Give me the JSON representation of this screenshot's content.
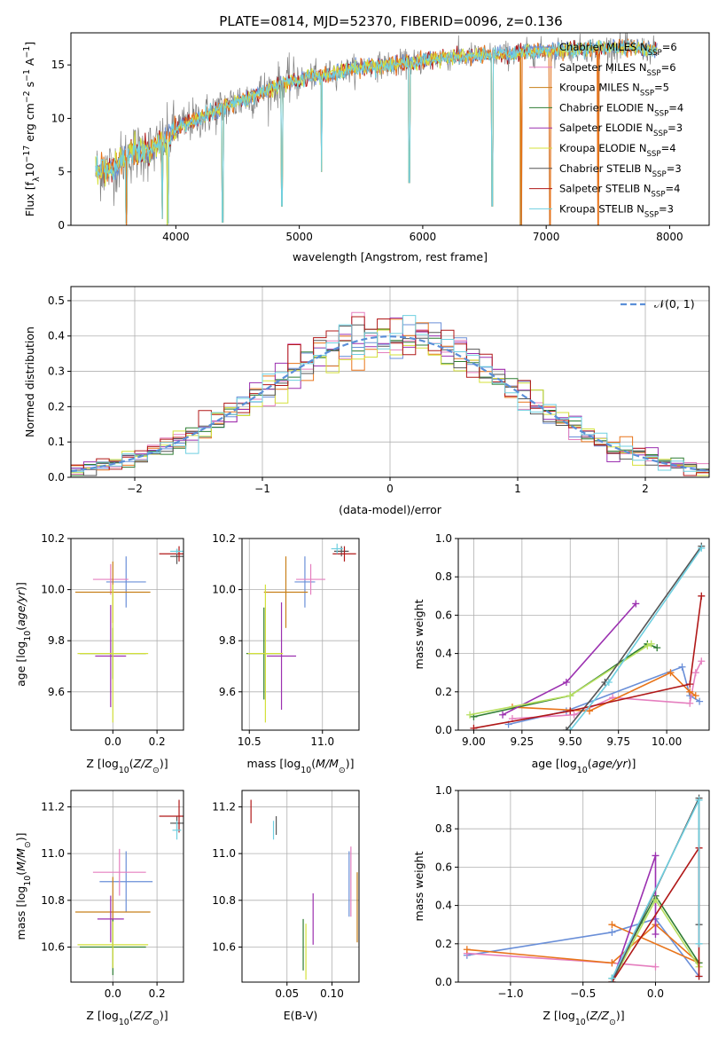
{
  "title": "PLATE=0814, MJD=52370, FIBERID=0096, z=0.136",
  "colors": {
    "Chabrier MILES": "#6a8fd8",
    "Salpeter MILES": "#e57fbf",
    "Kroupa MILES": "#c8801a",
    "Chabrier ELODIE": "#2e7d32",
    "Salpeter ELODIE": "#9b30b0",
    "Kroupa ELODIE": "#d4e03a",
    "Chabrier STELIB": "#555555",
    "Salpeter STELIB": "#b01818",
    "Kroupa STELIB": "#6ecfe0",
    "data": "#808080",
    "normal": "#5b8fd8",
    "orange": "#e8741a",
    "lightgreen": "#b8e060"
  },
  "chart_data": [
    {
      "type": "line",
      "name": "spectrum",
      "xlabel": "wavelength [Angstrom, rest frame]",
      "ylabel": "Flux [f_λ10^-17 erg cm^-2 s^-1 A^-1]",
      "xlim": [
        3150,
        8320
      ],
      "ylim": [
        0,
        18
      ],
      "xticks": [
        4000,
        5000,
        6000,
        7000,
        8000
      ],
      "yticks": [
        0,
        5,
        10,
        15
      ],
      "legend": {
        "placement": "top-right",
        "entries": [
          {
            "base": "Chabrier MILES",
            "sub": "SSP",
            "n": "=6"
          },
          {
            "base": "Salpeter MILES",
            "sub": "SSP",
            "n": "=6"
          },
          {
            "base": "Kroupa MILES",
            "sub": "SSP",
            "n": "=5"
          },
          {
            "base": "Chabrier ELODIE",
            "sub": "SSP",
            "n": "=4"
          },
          {
            "base": "Salpeter ELODIE",
            "sub": "SSP",
            "n": "=3"
          },
          {
            "base": "Kroupa ELODIE",
            "sub": "SSP",
            "n": "=4"
          },
          {
            "base": "Chabrier STELIB",
            "sub": "SSP",
            "n": "=3"
          },
          {
            "base": "Salpeter STELIB",
            "sub": "SSP",
            "n": "=4"
          },
          {
            "base": "Kroupa STELIB",
            "sub": "SSP",
            "n": "=3"
          }
        ]
      },
      "continuum": [
        [
          3350,
          5.0
        ],
        [
          3500,
          5.5
        ],
        [
          3650,
          6.8
        ],
        [
          3800,
          7.0
        ],
        [
          3900,
          7.6
        ],
        [
          4000,
          9.0
        ],
        [
          4100,
          9.6
        ],
        [
          4300,
          10.6
        ],
        [
          4500,
          11.6
        ],
        [
          4700,
          12.5
        ],
        [
          4900,
          13.4
        ],
        [
          5100,
          13.9
        ],
        [
          5300,
          14.3
        ],
        [
          5500,
          14.8
        ],
        [
          5700,
          15.0
        ],
        [
          5900,
          15.2
        ],
        [
          6100,
          15.6
        ],
        [
          6300,
          15.8
        ],
        [
          6500,
          15.9
        ],
        [
          6700,
          16.0
        ],
        [
          6900,
          16.2
        ],
        [
          7100,
          16.4
        ],
        [
          7300,
          16.5
        ],
        [
          7500,
          16.6
        ],
        [
          7700,
          16.6
        ],
        [
          7900,
          16.3
        ]
      ],
      "dips": [
        [
          3600,
          0.2
        ],
        [
          3890,
          0.6
        ],
        [
          3935,
          0.2
        ],
        [
          4380,
          0.3
        ],
        [
          4860,
          1.8
        ],
        [
          5180,
          5.0
        ],
        [
          5890,
          4.0
        ],
        [
          6563,
          1.8
        ],
        [
          6800,
          0
        ],
        [
          7030,
          0
        ],
        [
          7420,
          0
        ]
      ]
    },
    {
      "type": "line",
      "name": "residual-histogram",
      "xlabel": "(data-model)/error",
      "ylabel": "Normed distribution",
      "xlim": [
        -2.5,
        2.5
      ],
      "ylim": [
        0,
        0.54
      ],
      "xticks": [
        -2,
        -1,
        0,
        1,
        2
      ],
      "yticks": [
        0,
        0.1,
        0.2,
        0.3,
        0.4,
        0.5
      ],
      "legend": {
        "placement": "top-right",
        "label": "𝒩(0, 1)"
      },
      "bin_width": 0.1
    },
    {
      "type": "scatter",
      "name": "age-vs-Z",
      "xlabel": "Z [log10(Z/Z⊙)]",
      "ylabel": "age [log10(age/yr)]",
      "xlim": [
        -0.19,
        0.32
      ],
      "ylim": [
        9.45,
        10.2
      ],
      "xticks": [
        0.0,
        0.2
      ],
      "yticks": [
        9.6,
        9.8,
        10.0,
        10.2
      ],
      "points": [
        {
          "c": "Chabrier MILES",
          "x": 0.06,
          "y": 10.03,
          "ex": 0.09,
          "ey": 0.1
        },
        {
          "c": "Salpeter MILES",
          "x": -0.01,
          "y": 10.04,
          "ex": 0.08,
          "ey": 0.06
        },
        {
          "c": "Kroupa MILES",
          "x": 0.0,
          "y": 9.99,
          "ex": 0.17,
          "ey": 0.12
        },
        {
          "c": "Chabrier ELODIE",
          "x": 0.0,
          "y": 9.75,
          "ex": 0.15,
          "ey": 0.1
        },
        {
          "c": "Salpeter ELODIE",
          "x": -0.01,
          "y": 9.74,
          "ex": 0.07,
          "ey": 0.2
        },
        {
          "c": "Kroupa ELODIE",
          "x": 0.0,
          "y": 9.75,
          "ex": 0.16,
          "ey": 0.27
        },
        {
          "c": "Chabrier STELIB",
          "x": 0.29,
          "y": 10.13,
          "ex": 0.03,
          "ey": 0.03
        },
        {
          "c": "Salpeter STELIB",
          "x": 0.3,
          "y": 10.14,
          "ex": 0.09,
          "ey": 0.03
        },
        {
          "c": "Kroupa STELIB",
          "x": 0.29,
          "y": 10.15,
          "ex": 0.03,
          "ey": 0.01
        }
      ]
    },
    {
      "type": "scatter",
      "name": "age-vs-mass",
      "xlabel": "mass [log10(M/M⊙)]",
      "ylabel": "",
      "xlim": [
        10.45,
        11.25
      ],
      "ylim": [
        9.45,
        10.2
      ],
      "xticks": [
        10.5,
        11.0
      ],
      "yticks": [
        9.6,
        9.8,
        10.0,
        10.2
      ],
      "points": [
        {
          "c": "Chabrier MILES",
          "x": 10.88,
          "y": 10.03,
          "ex": 0.07,
          "ey": 0.1
        },
        {
          "c": "Salpeter MILES",
          "x": 10.92,
          "y": 10.04,
          "ex": 0.1,
          "ey": 0.06
        },
        {
          "c": "Kroupa MILES",
          "x": 10.75,
          "y": 9.99,
          "ex": 0.15,
          "ey": 0.14
        },
        {
          "c": "Chabrier ELODIE",
          "x": 10.6,
          "y": 9.75,
          "ex": 0.12,
          "ey": 0.18
        },
        {
          "c": "Salpeter ELODIE",
          "x": 10.72,
          "y": 9.74,
          "ex": 0.1,
          "ey": 0.21
        },
        {
          "c": "Kroupa ELODIE",
          "x": 10.61,
          "y": 9.75,
          "ex": 0.12,
          "ey": 0.27
        },
        {
          "c": "Chabrier STELIB",
          "x": 11.13,
          "y": 10.15,
          "ex": 0.05,
          "ey": 0.02
        },
        {
          "c": "Salpeter STELIB",
          "x": 11.15,
          "y": 10.14,
          "ex": 0.08,
          "ey": 0.03
        },
        {
          "c": "Kroupa STELIB",
          "x": 11.1,
          "y": 10.16,
          "ex": 0.04,
          "ey": 0.02
        }
      ]
    },
    {
      "type": "line",
      "name": "mass-weight-vs-age",
      "xlabel": "age [log10(age/yr)]",
      "ylabel": "mass weight",
      "xlim": [
        8.92,
        10.22
      ],
      "ylim": [
        0,
        1.0
      ],
      "xticks": [
        9.0,
        9.25,
        9.5,
        9.75,
        10.0
      ],
      "yticks": [
        0,
        0.2,
        0.4,
        0.6,
        0.8,
        1.0
      ],
      "series": [
        {
          "c": "Chabrier MILES",
          "x": [
            9.18,
            9.48,
            10.08,
            10.12,
            10.17
          ],
          "y": [
            0.03,
            0.1,
            0.33,
            0.18,
            0.15
          ]
        },
        {
          "c": "Salpeter MILES",
          "x": [
            9.2,
            9.52,
            9.72,
            10.12,
            10.15,
            10.18
          ],
          "y": [
            0.06,
            0.08,
            0.17,
            0.14,
            0.3,
            0.36
          ]
        },
        {
          "c": "orange",
          "x": [
            9.2,
            9.6,
            10.02,
            10.12,
            10.15
          ],
          "y": [
            0.12,
            0.1,
            0.3,
            0.2,
            0.18
          ]
        },
        {
          "c": "Chabrier ELODIE",
          "x": [
            9.0,
            9.5,
            9.9,
            9.95
          ],
          "y": [
            0.07,
            0.18,
            0.45,
            0.43
          ]
        },
        {
          "c": "Salpeter ELODIE",
          "x": [
            9.15,
            9.48,
            9.84
          ],
          "y": [
            0.08,
            0.25,
            0.66
          ]
        },
        {
          "c": "lightgreen",
          "x": [
            8.98,
            9.5,
            9.9,
            9.92
          ],
          "y": [
            0.08,
            0.18,
            0.44,
            0.45
          ]
        },
        {
          "c": "Chabrier STELIB",
          "x": [
            9.48,
            9.68,
            10.18
          ],
          "y": [
            0.0,
            0.25,
            0.96
          ]
        },
        {
          "c": "Salpeter STELIB",
          "x": [
            9.0,
            9.5,
            10.12,
            10.18
          ],
          "y": [
            0.01,
            0.1,
            0.24,
            0.7
          ]
        },
        {
          "c": "Kroupa STELIB",
          "x": [
            9.5,
            9.7,
            10.18
          ],
          "y": [
            0.0,
            0.25,
            0.95
          ]
        }
      ]
    },
    {
      "type": "scatter",
      "name": "mass-vs-Z",
      "xlabel": "Z [log10(Z/Z⊙)]",
      "ylabel": "mass [log10(M/M⊙)]",
      "xlim": [
        -0.19,
        0.32
      ],
      "ylim": [
        10.45,
        11.27
      ],
      "xticks": [
        0.0,
        0.2
      ],
      "yticks": [
        10.6,
        10.8,
        11.0,
        11.2
      ],
      "points": [
        {
          "c": "Chabrier MILES",
          "x": 0.06,
          "y": 10.88,
          "ex": 0.12,
          "ey": 0.13
        },
        {
          "c": "Salpeter MILES",
          "x": 0.03,
          "y": 10.92,
          "ex": 0.12,
          "ey": 0.1
        },
        {
          "c": "Kroupa MILES",
          "x": 0.0,
          "y": 10.75,
          "ex": 0.17,
          "ey": 0.15
        },
        {
          "c": "Chabrier ELODIE",
          "x": 0.0,
          "y": 10.6,
          "ex": 0.15,
          "ey": 0.12
        },
        {
          "c": "Salpeter ELODIE",
          "x": -0.01,
          "y": 10.72,
          "ex": 0.06,
          "ey": 0.1
        },
        {
          "c": "Kroupa ELODIE",
          "x": 0.0,
          "y": 10.61,
          "ex": 0.16,
          "ey": 0.1
        },
        {
          "c": "Chabrier STELIB",
          "x": 0.29,
          "y": 11.13,
          "ex": 0.03,
          "ey": 0.03
        },
        {
          "c": "Salpeter STELIB",
          "x": 0.3,
          "y": 11.16,
          "ex": 0.09,
          "ey": 0.07
        },
        {
          "c": "Kroupa STELIB",
          "x": 0.29,
          "y": 11.1,
          "ex": 0.02,
          "ey": 0.04
        }
      ]
    },
    {
      "type": "scatter",
      "name": "mass-vs-EBV",
      "xlabel": "E(B-V)",
      "ylabel": "",
      "xlim": [
        0.0,
        0.13
      ],
      "ylim": [
        10.45,
        11.27
      ],
      "xticks": [
        0.05,
        0.1
      ],
      "yticks": [
        10.6,
        10.8,
        11.0,
        11.2
      ],
      "points": [
        {
          "c": "Chabrier MILES",
          "x": 0.119,
          "y": 10.87,
          "ey": 0.14
        },
        {
          "c": "Salpeter MILES",
          "x": 0.121,
          "y": 10.88,
          "ey": 0.15
        },
        {
          "c": "Kroupa MILES",
          "x": 0.128,
          "y": 10.77,
          "ey": 0.15
        },
        {
          "c": "Chabrier ELODIE",
          "x": 0.068,
          "y": 10.61,
          "ey": 0.11
        },
        {
          "c": "Salpeter ELODIE",
          "x": 0.079,
          "y": 10.72,
          "ey": 0.11
        },
        {
          "c": "Kroupa ELODIE",
          "x": 0.071,
          "y": 10.58,
          "ey": 0.12
        },
        {
          "c": "Chabrier STELIB",
          "x": 0.038,
          "y": 11.12,
          "ey": 0.04
        },
        {
          "c": "Salpeter STELIB",
          "x": 0.01,
          "y": 11.18,
          "ey": 0.05
        },
        {
          "c": "Kroupa STELIB",
          "x": 0.035,
          "y": 11.1,
          "ey": 0.04
        }
      ]
    },
    {
      "type": "line",
      "name": "mass-weight-vs-Z",
      "xlabel": "Z [log10(Z/Z⊙)]",
      "ylabel": "mass weight",
      "xlim": [
        -1.36,
        0.37
      ],
      "ylim": [
        0,
        1.0
      ],
      "xticks": [
        -1.0,
        -0.5,
        0.0
      ],
      "yticks": [
        0,
        0.2,
        0.4,
        0.6,
        0.8,
        1.0
      ],
      "series": [
        {
          "c": "Chabrier MILES",
          "x": [
            -1.3,
            -0.3,
            0.0,
            0.3
          ],
          "y": [
            0.14,
            0.26,
            0.33,
            0.03
          ]
        },
        {
          "c": "Salpeter MILES",
          "x": [
            -1.3,
            -0.3,
            0.0,
            -0.3
          ],
          "y": [
            0.15,
            0.1,
            0.08,
            0.1
          ]
        },
        {
          "c": "orange",
          "x": [
            -1.3,
            -0.3,
            0.0,
            0.3,
            -0.3
          ],
          "y": [
            0.17,
            0.1,
            0.3,
            0.1,
            0.3
          ]
        },
        {
          "c": "Chabrier ELODIE",
          "x": [
            -0.3,
            0.0,
            0.3
          ],
          "y": [
            0.02,
            0.45,
            0.1
          ]
        },
        {
          "c": "Salpeter ELODIE",
          "x": [
            -0.3,
            0.0,
            0.0
          ],
          "y": [
            0.0,
            0.66,
            0.25
          ]
        },
        {
          "c": "lightgreen",
          "x": [
            -0.3,
            0.0,
            0.3
          ],
          "y": [
            0.0,
            0.43,
            0.08
          ]
        },
        {
          "c": "Chabrier STELIB",
          "x": [
            -0.3,
            0.3,
            0.3
          ],
          "y": [
            0.0,
            0.96,
            0.3
          ]
        },
        {
          "c": "Salpeter STELIB",
          "x": [
            -0.3,
            0.3,
            0.3
          ],
          "y": [
            0.0,
            0.7,
            0.03
          ]
        },
        {
          "c": "Kroupa STELIB",
          "x": [
            -0.3,
            0.3,
            0.3
          ],
          "y": [
            0.02,
            0.95,
            0.2
          ]
        }
      ]
    }
  ]
}
